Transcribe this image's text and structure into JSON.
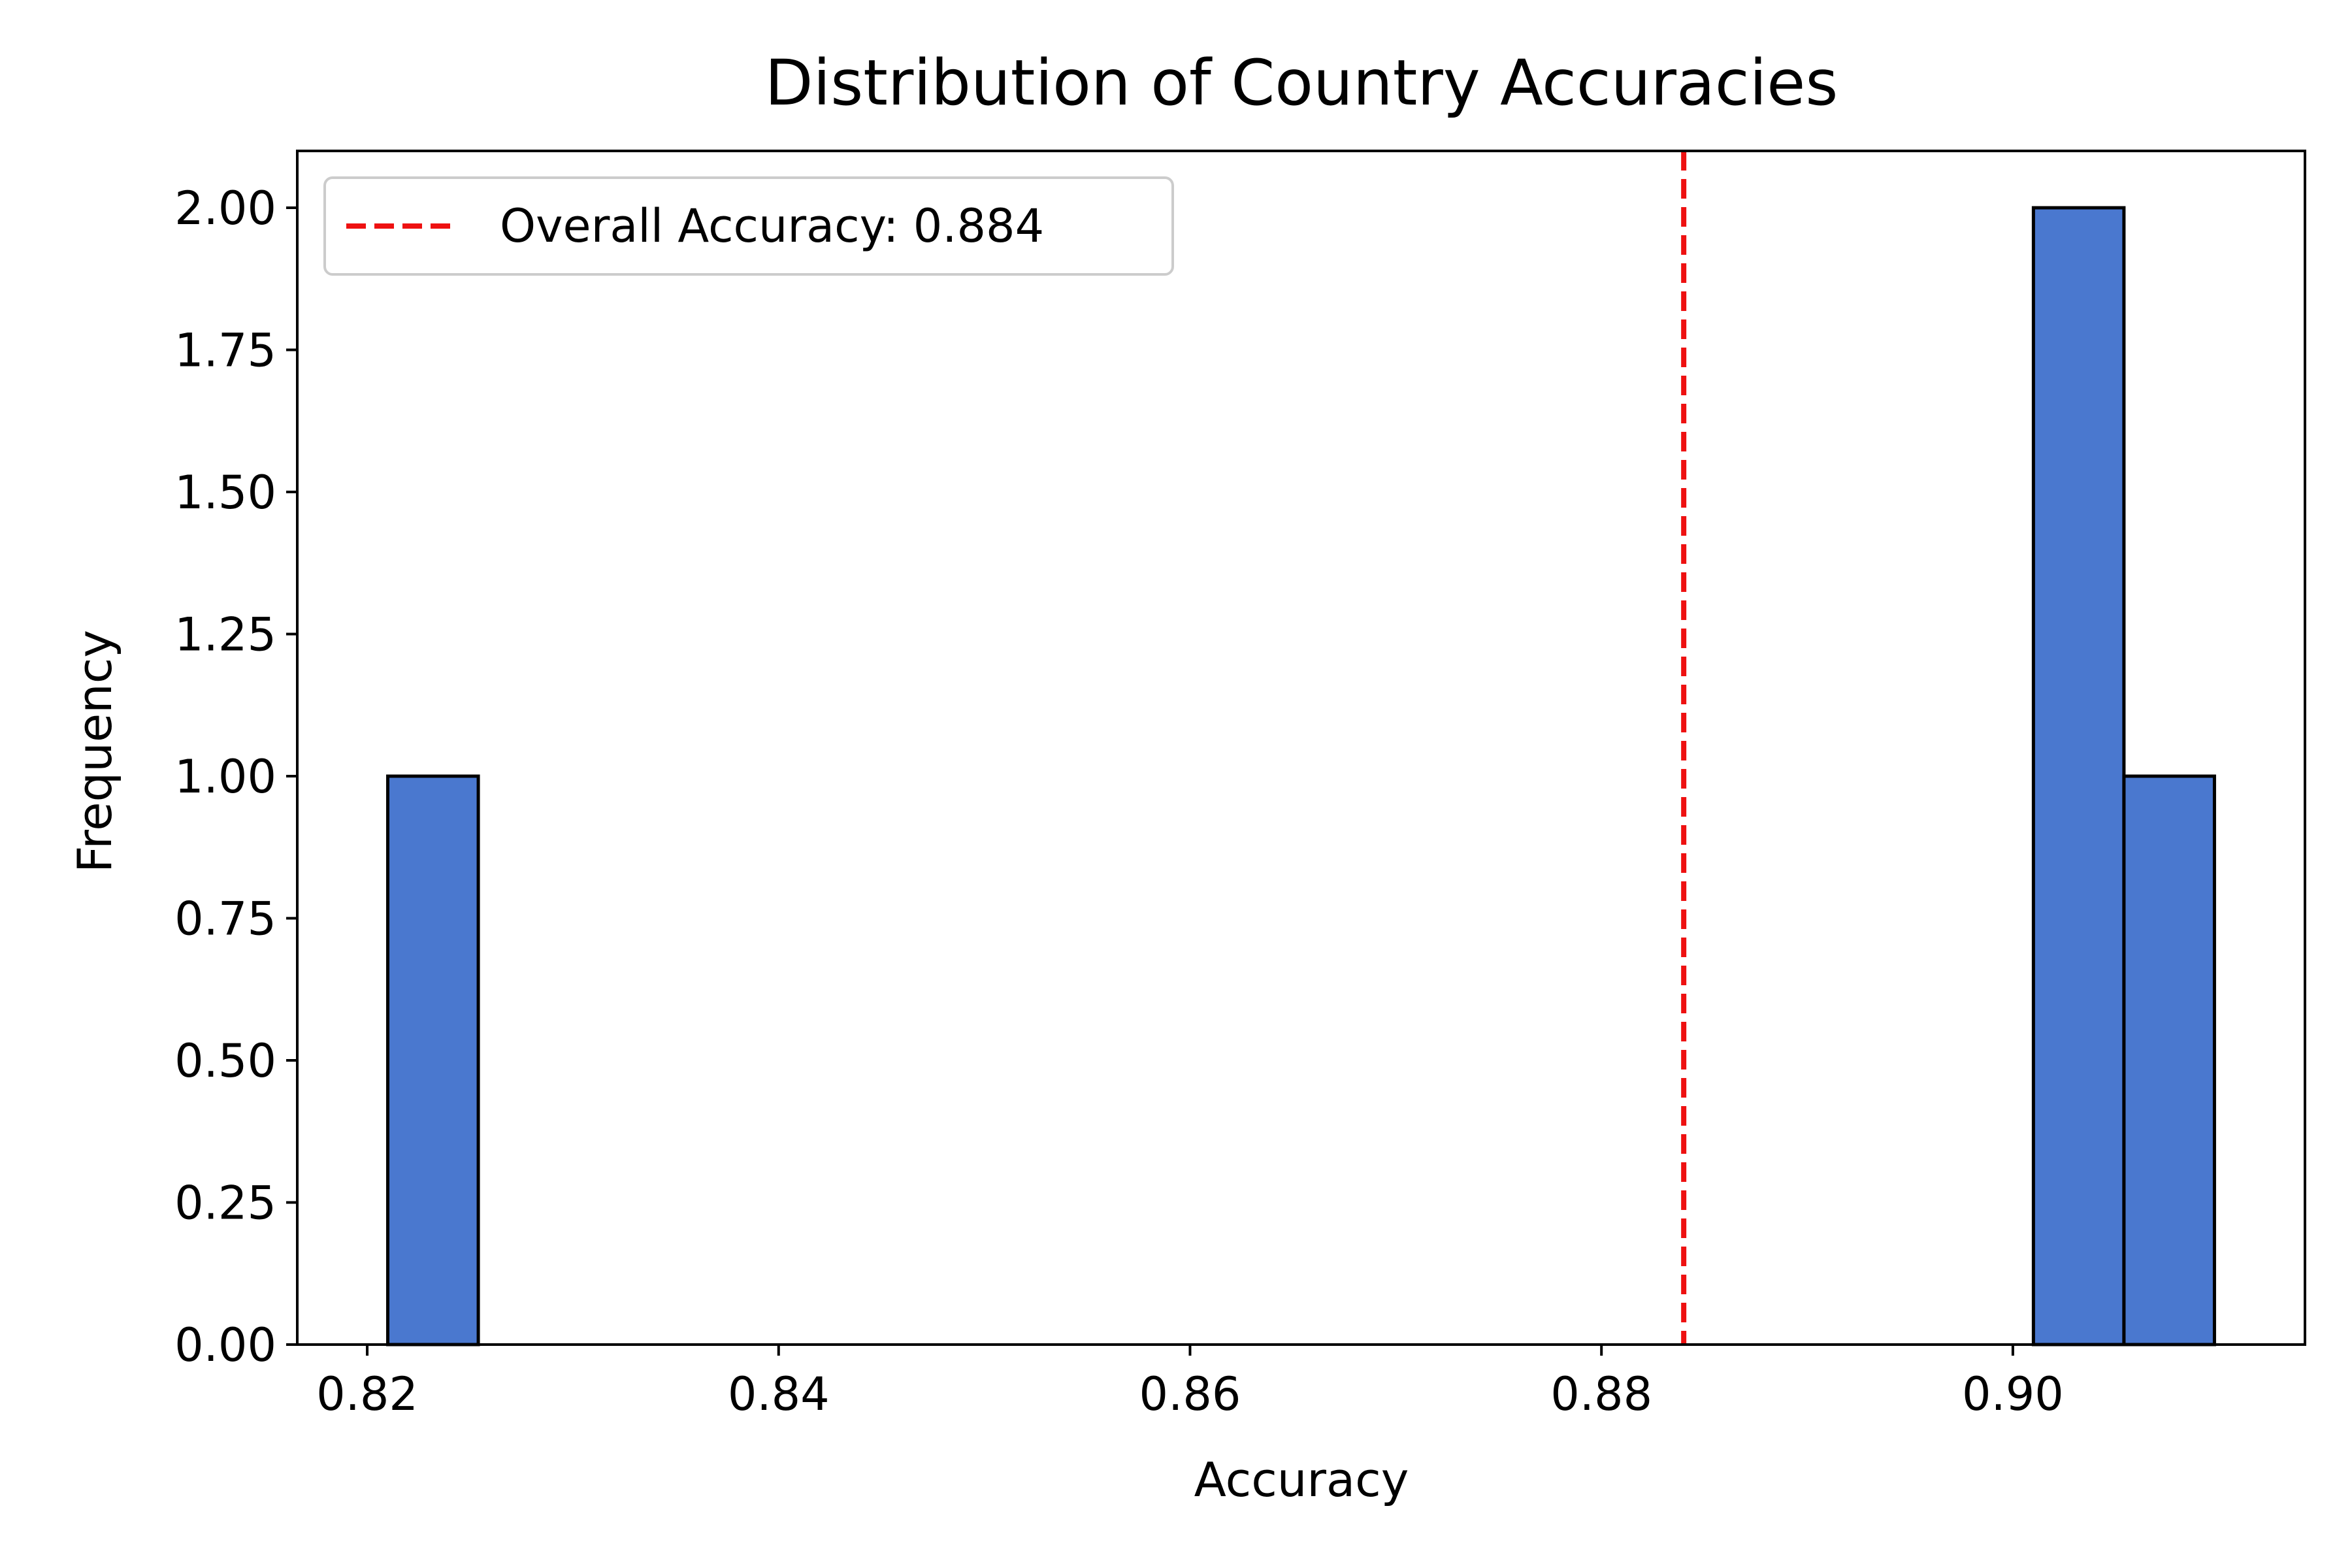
{
  "chart_data": {
    "type": "bar",
    "title": "Distribution of Country Accuracies",
    "xlabel": "Accuracy",
    "ylabel": "Frequency",
    "xlim": [
      0.8166,
      0.9142
    ],
    "ylim": [
      0,
      2.1
    ],
    "xticks": [
      "0.82",
      "0.84",
      "0.86",
      "0.88",
      "0.90"
    ],
    "yticks": [
      "0.00",
      "0.25",
      "0.50",
      "0.75",
      "1.00",
      "1.25",
      "1.50",
      "1.75",
      "2.00"
    ],
    "bins": [
      {
        "start": 0.821,
        "end": 0.8254,
        "count": 1
      },
      {
        "start": 0.901,
        "end": 0.9054,
        "count": 2
      },
      {
        "start": 0.9054,
        "end": 0.9098,
        "count": 1
      }
    ],
    "reference_line": {
      "x": 0.884,
      "label": "Overall Accuracy: 0.884"
    },
    "legend_position": "upper-left",
    "bar_color": "#4a78cf",
    "line_color": "#ee1111",
    "grid": false
  }
}
